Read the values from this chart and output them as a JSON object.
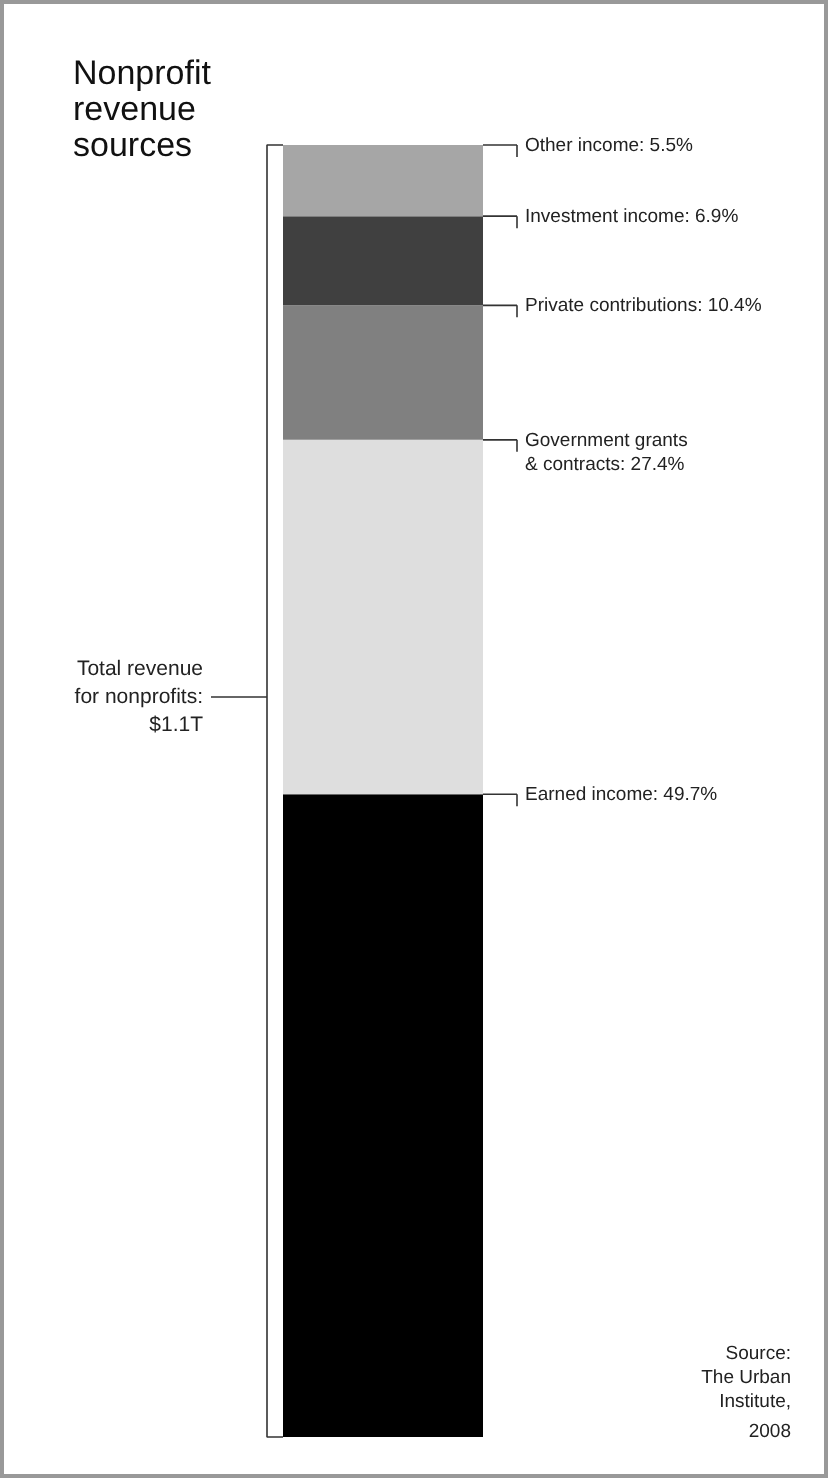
{
  "chart_data": {
    "type": "bar",
    "title": "Nonprofit revenue sources",
    "categories": [
      null
    ],
    "stacked": true,
    "series": [
      {
        "color": "#000000",
        "values": [
          49.7
        ],
        "value_labels": [
          "Earned income: 49.7%"
        ]
      },
      {
        "color": "#dedede",
        "values": [
          27.4
        ],
        "value_labels": [
          "Government grants & contracts: 27.4%"
        ]
      },
      {
        "color": "#808080",
        "values": [
          10.4
        ],
        "value_labels": [
          "Private contributions: 10.4%"
        ]
      },
      {
        "color": "#404040",
        "values": [
          6.9
        ],
        "value_labels": [
          "Investment income: 6.9%"
        ]
      },
      {
        "color": "#a6a6a6",
        "values": [
          5.5
        ],
        "value_labels": [
          "Other income: 5.5%"
        ]
      }
    ],
    "annotations": [
      "Total revenue for nonprofits: $1.1T",
      "Source: The Urban Institute, 2008"
    ],
    "grid": false
  }
}
